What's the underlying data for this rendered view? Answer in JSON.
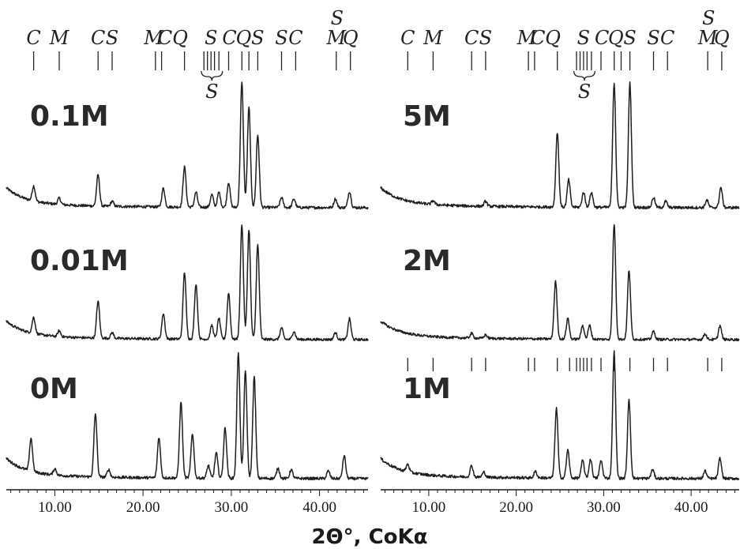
{
  "chart_data": {
    "type": "line",
    "x_axis_title": "2Θ°, CoKα",
    "xlim": [
      4.5,
      45.5
    ],
    "x_ticks": [
      "10.00",
      "20.00",
      "30.00",
      "40.00"
    ],
    "x_tick_values": [
      10,
      20,
      30,
      40
    ],
    "phase_reference": {
      "labels": [
        {
          "text": "C",
          "x": 7.6
        },
        {
          "text": "M",
          "x": 10.5
        },
        {
          "text": "C",
          "x": 14.9
        },
        {
          "text": "S",
          "x": 16.5
        },
        {
          "text": "M",
          "x": 21.2
        },
        {
          "text": "C",
          "x": 22.5
        },
        {
          "text": "Q",
          "x": 24.2
        },
        {
          "text": "S",
          "x": 27.7
        },
        {
          "text": "C",
          "x": 29.8
        },
        {
          "text": "Q",
          "x": 31.4
        },
        {
          "text": "S",
          "x": 33.0
        },
        {
          "text": "S",
          "x": 35.7
        },
        {
          "text": "C",
          "x": 37.3
        },
        {
          "text": "S",
          "x": 42.0
        },
        {
          "text": "M",
          "x": 41.9
        },
        {
          "text": "Q",
          "x": 43.5
        }
      ],
      "lines": [
        7.6,
        10.5,
        14.9,
        16.5,
        21.4,
        22.1,
        24.7,
        26.9,
        27.3,
        27.7,
        28.1,
        28.6,
        29.7,
        31.2,
        32.0,
        33.0,
        35.7,
        37.3,
        41.9,
        43.5
      ]
    },
    "panels": [
      {
        "column": "left",
        "label": "0.1M",
        "peaks": [
          {
            "x": 7.6,
            "h": 0.12
          },
          {
            "x": 10.5,
            "h": 0.05
          },
          {
            "x": 14.9,
            "h": 0.25
          },
          {
            "x": 16.5,
            "h": 0.04
          },
          {
            "x": 22.3,
            "h": 0.15
          },
          {
            "x": 24.7,
            "h": 0.32
          },
          {
            "x": 26.0,
            "h": 0.12
          },
          {
            "x": 27.8,
            "h": 0.1
          },
          {
            "x": 28.6,
            "h": 0.12
          },
          {
            "x": 29.7,
            "h": 0.2
          },
          {
            "x": 31.2,
            "h": 1.0
          },
          {
            "x": 32.0,
            "h": 0.8
          },
          {
            "x": 33.0,
            "h": 0.58
          },
          {
            "x": 35.7,
            "h": 0.08
          },
          {
            "x": 37.1,
            "h": 0.07
          },
          {
            "x": 41.8,
            "h": 0.07
          },
          {
            "x": 43.4,
            "h": 0.13
          }
        ]
      },
      {
        "column": "left",
        "label": "0.01M",
        "peaks": [
          {
            "x": 7.6,
            "h": 0.14
          },
          {
            "x": 10.5,
            "h": 0.05
          },
          {
            "x": 14.9,
            "h": 0.32
          },
          {
            "x": 16.5,
            "h": 0.05
          },
          {
            "x": 22.3,
            "h": 0.22
          },
          {
            "x": 24.7,
            "h": 0.58
          },
          {
            "x": 26.0,
            "h": 0.48
          },
          {
            "x": 27.8,
            "h": 0.12
          },
          {
            "x": 28.6,
            "h": 0.18
          },
          {
            "x": 29.7,
            "h": 0.4
          },
          {
            "x": 31.2,
            "h": 1.0
          },
          {
            "x": 32.0,
            "h": 0.95
          },
          {
            "x": 33.0,
            "h": 0.82
          },
          {
            "x": 35.7,
            "h": 0.1
          },
          {
            "x": 37.1,
            "h": 0.07
          },
          {
            "x": 41.8,
            "h": 0.06
          },
          {
            "x": 43.4,
            "h": 0.18
          }
        ]
      },
      {
        "column": "left",
        "label": "0M",
        "peaks": [
          {
            "x": 7.3,
            "h": 0.26
          },
          {
            "x": 10.0,
            "h": 0.05
          },
          {
            "x": 14.6,
            "h": 0.5
          },
          {
            "x": 16.1,
            "h": 0.06
          },
          {
            "x": 21.8,
            "h": 0.32
          },
          {
            "x": 24.3,
            "h": 0.6
          },
          {
            "x": 25.6,
            "h": 0.35
          },
          {
            "x": 27.4,
            "h": 0.1
          },
          {
            "x": 28.3,
            "h": 0.2
          },
          {
            "x": 29.3,
            "h": 0.4
          },
          {
            "x": 30.8,
            "h": 1.0
          },
          {
            "x": 31.6,
            "h": 0.85
          },
          {
            "x": 32.6,
            "h": 0.8
          },
          {
            "x": 35.3,
            "h": 0.08
          },
          {
            "x": 36.8,
            "h": 0.07
          },
          {
            "x": 41.0,
            "h": 0.06
          },
          {
            "x": 42.8,
            "h": 0.18
          }
        ]
      },
      {
        "column": "right",
        "label": "5M",
        "peaks": [
          {
            "x": 10.5,
            "h": 0.03
          },
          {
            "x": 16.5,
            "h": 0.04
          },
          {
            "x": 24.7,
            "h": 0.6
          },
          {
            "x": 26.0,
            "h": 0.22
          },
          {
            "x": 27.7,
            "h": 0.12
          },
          {
            "x": 28.6,
            "h": 0.12
          },
          {
            "x": 31.2,
            "h": 1.0
          },
          {
            "x": 33.0,
            "h": 1.0
          },
          {
            "x": 35.7,
            "h": 0.08
          },
          {
            "x": 37.1,
            "h": 0.05
          },
          {
            "x": 41.8,
            "h": 0.06
          },
          {
            "x": 43.4,
            "h": 0.16
          }
        ]
      },
      {
        "column": "right",
        "label": "2M",
        "peaks": [
          {
            "x": 14.9,
            "h": 0.04
          },
          {
            "x": 16.5,
            "h": 0.03
          },
          {
            "x": 24.5,
            "h": 0.5
          },
          {
            "x": 25.9,
            "h": 0.18
          },
          {
            "x": 27.6,
            "h": 0.12
          },
          {
            "x": 28.4,
            "h": 0.12
          },
          {
            "x": 31.2,
            "h": 1.0
          },
          {
            "x": 32.9,
            "h": 0.6
          },
          {
            "x": 35.7,
            "h": 0.07
          },
          {
            "x": 41.6,
            "h": 0.05
          },
          {
            "x": 43.3,
            "h": 0.12
          }
        ]
      },
      {
        "column": "right",
        "label": "1M",
        "peaks": [
          {
            "x": 7.6,
            "h": 0.06
          },
          {
            "x": 14.9,
            "h": 0.09
          },
          {
            "x": 16.3,
            "h": 0.04
          },
          {
            "x": 22.2,
            "h": 0.05
          },
          {
            "x": 24.6,
            "h": 0.55
          },
          {
            "x": 25.9,
            "h": 0.22
          },
          {
            "x": 27.6,
            "h": 0.14
          },
          {
            "x": 28.5,
            "h": 0.15
          },
          {
            "x": 29.7,
            "h": 0.14
          },
          {
            "x": 31.2,
            "h": 1.0
          },
          {
            "x": 32.9,
            "h": 0.62
          },
          {
            "x": 35.6,
            "h": 0.07
          },
          {
            "x": 41.6,
            "h": 0.06
          },
          {
            "x": 43.3,
            "h": 0.16
          }
        ]
      }
    ],
    "right_1M_reference_lines": [
      7.6,
      10.5,
      14.9,
      16.5,
      21.4,
      22.1,
      24.7,
      26.1,
      26.9,
      27.3,
      27.7,
      28.1,
      28.6,
      29.7,
      31.2,
      33.0,
      35.7,
      37.3,
      41.9,
      43.5
    ]
  }
}
